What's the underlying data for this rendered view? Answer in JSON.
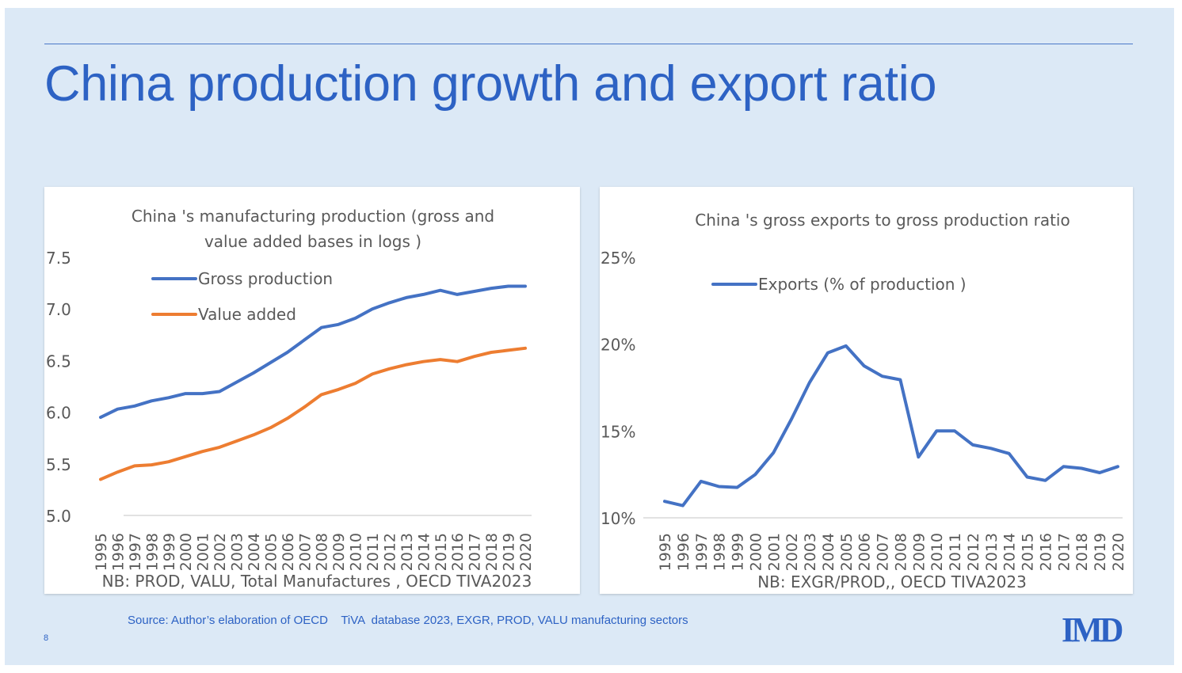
{
  "slide": {
    "title": "China production growth and export ratio",
    "source": "Source: Author’s elaboration of OECD    TiVA  database 2023, EXGR, PROD, VALU manufacturing sectors",
    "page_number": "8",
    "logo": "IMD",
    "colors": {
      "title": "#2d62c4",
      "background": "#dce9f6",
      "blue_series": "#4472c4",
      "orange_series": "#ed7d31"
    }
  },
  "chart_data": [
    {
      "type": "line",
      "title_lines": [
        "China 's manufacturing production   (gross and",
        "value added bases in logs   )"
      ],
      "note": "NB: PROD, VALU, Total Manufactures  , OECD TIVA2023",
      "x": [
        "1995",
        "1996",
        "1997",
        "1998",
        "1999",
        "2000",
        "2001",
        "2002",
        "2003",
        "2004",
        "2005",
        "2006",
        "2007",
        "2008",
        "2009",
        "2010",
        "2011",
        "2012",
        "2013",
        "2014",
        "2015",
        "2016",
        "2017",
        "2018",
        "2019",
        "2020"
      ],
      "ylim": [
        5.0,
        7.5
      ],
      "yticks": [
        "5.0",
        "5.5",
        "6.0",
        "6.5",
        "7.0",
        "7.5"
      ],
      "ytick_values": [
        5.0,
        5.5,
        6.0,
        6.5,
        7.0,
        7.5
      ],
      "legend": "top-left",
      "grid": false,
      "series": [
        {
          "name": "Gross production",
          "color": "#4472c4",
          "values": [
            5.95,
            6.03,
            6.06,
            6.11,
            6.14,
            6.18,
            6.18,
            6.2,
            6.29,
            6.38,
            6.48,
            6.58,
            6.7,
            6.82,
            6.85,
            6.91,
            7.0,
            7.06,
            7.11,
            7.14,
            7.18,
            7.14,
            7.17,
            7.2,
            7.22,
            7.22
          ]
        },
        {
          "name": "Value added",
          "color": "#ed7d31",
          "values": [
            5.35,
            5.42,
            5.48,
            5.49,
            5.52,
            5.57,
            5.62,
            5.66,
            5.72,
            5.78,
            5.85,
            5.94,
            6.05,
            6.17,
            6.22,
            6.28,
            6.37,
            6.42,
            6.46,
            6.49,
            6.51,
            6.49,
            6.54,
            6.58,
            6.6,
            6.62
          ]
        }
      ]
    },
    {
      "type": "line",
      "title_lines": [
        "China 's gross exports to gross production ratio"
      ],
      "note": "NB: EXGR/PROD,, OECD TIVA2023",
      "x": [
        "1995",
        "1996",
        "1997",
        "1998",
        "1999",
        "2000",
        "2001",
        "2002",
        "2003",
        "2004",
        "2005",
        "2006",
        "2007",
        "2008",
        "2009",
        "2010",
        "2011",
        "2012",
        "2013",
        "2014",
        "2015",
        "2016",
        "2017",
        "2018",
        "2019",
        "2020"
      ],
      "ylim": [
        10,
        25
      ],
      "yticks": [
        "10%",
        "15%",
        "20%",
        "25%"
      ],
      "ytick_values": [
        10,
        15,
        20,
        25
      ],
      "legend": "top-left",
      "grid": false,
      "series": [
        {
          "name": "Exports  (% of production  )",
          "color": "#4472c4",
          "values": [
            10.95,
            10.7,
            12.1,
            11.8,
            11.75,
            12.5,
            13.75,
            15.7,
            17.8,
            19.5,
            19.9,
            18.75,
            18.15,
            17.95,
            13.5,
            15.0,
            15.0,
            14.2,
            14.0,
            13.7,
            12.35,
            12.15,
            12.95,
            12.85,
            12.6,
            12.95
          ]
        }
      ]
    }
  ]
}
